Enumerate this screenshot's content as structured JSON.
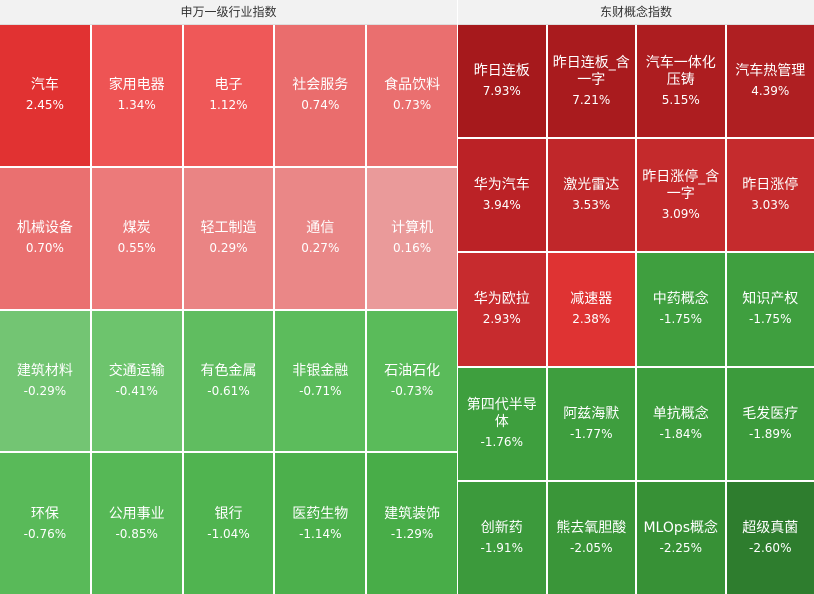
{
  "chart_data": [
    {
      "type": "heatmap",
      "title": "申万一级行业指数",
      "tiles": [
        {
          "name": "汽车",
          "value": "2.45%",
          "color": "#e13232"
        },
        {
          "name": "家用电器",
          "value": "1.34%",
          "color": "#ee5454"
        },
        {
          "name": "电子",
          "value": "1.12%",
          "color": "#ef5858"
        },
        {
          "name": "社会服务",
          "value": "0.74%",
          "color": "#ea6d6d"
        },
        {
          "name": "食品饮料",
          "value": "0.73%",
          "color": "#ea6f6f"
        },
        {
          "name": "机械设备",
          "value": "0.70%",
          "color": "#ea7070"
        },
        {
          "name": "煤炭",
          "value": "0.55%",
          "color": "#ec7a7a"
        },
        {
          "name": "轻工制造",
          "value": "0.29%",
          "color": "#ea8484"
        },
        {
          "name": "通信",
          "value": "0.27%",
          "color": "#ea8787"
        },
        {
          "name": "计算机",
          "value": "0.16%",
          "color": "#ea9a9a"
        },
        {
          "name": "建筑材料",
          "value": "-0.29%",
          "color": "#73c573"
        },
        {
          "name": "交通运输",
          "value": "-0.41%",
          "color": "#6dc46d"
        },
        {
          "name": "有色金属",
          "value": "-0.61%",
          "color": "#60bd60"
        },
        {
          "name": "非银金融",
          "value": "-0.71%",
          "color": "#5cbc5c"
        },
        {
          "name": "石油石化",
          "value": "-0.73%",
          "color": "#5abb5a"
        },
        {
          "name": "环保",
          "value": "-0.76%",
          "color": "#59ba59"
        },
        {
          "name": "公用事业",
          "value": "-0.85%",
          "color": "#56b856"
        },
        {
          "name": "银行",
          "value": "-1.04%",
          "color": "#50b450"
        },
        {
          "name": "医药生物",
          "value": "-1.14%",
          "color": "#4cb04c"
        },
        {
          "name": "建筑装饰",
          "value": "-1.29%",
          "color": "#48ad48"
        }
      ]
    },
    {
      "type": "heatmap",
      "title": "东财概念指数",
      "tiles": [
        {
          "name": "昨日连板",
          "value": "7.93%",
          "color": "#a6191c"
        },
        {
          "name": "昨日连板_含一字",
          "value": "7.21%",
          "color": "#a91b1e"
        },
        {
          "name": "汽车一体化压铸",
          "value": "5.15%",
          "color": "#ad1d20"
        },
        {
          "name": "汽车热管理",
          "value": "4.39%",
          "color": "#af1f22"
        },
        {
          "name": "华为汽车",
          "value": "3.94%",
          "color": "#bb2226"
        },
        {
          "name": "激光雷达",
          "value": "3.53%",
          "color": "#c0272a"
        },
        {
          "name": "昨日涨停_含一字",
          "value": "3.09%",
          "color": "#c42a2c"
        },
        {
          "name": "昨日涨停",
          "value": "3.03%",
          "color": "#c52b2d"
        },
        {
          "name": "华为欧拉",
          "value": "2.93%",
          "color": "#c72b2e"
        },
        {
          "name": "减速器",
          "value": "2.38%",
          "color": "#df3333"
        },
        {
          "name": "中药概念",
          "value": "-1.75%",
          "color": "#3f9f3f"
        },
        {
          "name": "知识产权",
          "value": "-1.75%",
          "color": "#3f9f3f"
        },
        {
          "name": "第四代半导体",
          "value": "-1.76%",
          "color": "#3e9f3e"
        },
        {
          "name": "阿兹海默",
          "value": "-1.77%",
          "color": "#3e9e3e"
        },
        {
          "name": "单抗概念",
          "value": "-1.84%",
          "color": "#3d9d3d"
        },
        {
          "name": "毛发医疗",
          "value": "-1.89%",
          "color": "#3c9b3c"
        },
        {
          "name": "创新药",
          "value": "-1.91%",
          "color": "#3c9a3c"
        },
        {
          "name": "熊去氧胆酸",
          "value": "-2.05%",
          "color": "#3a9639"
        },
        {
          "name": "MLOps概念",
          "value": "-2.25%",
          "color": "#379136"
        },
        {
          "name": "超级真菌",
          "value": "-2.60%",
          "color": "#2e7d2e"
        }
      ]
    }
  ]
}
